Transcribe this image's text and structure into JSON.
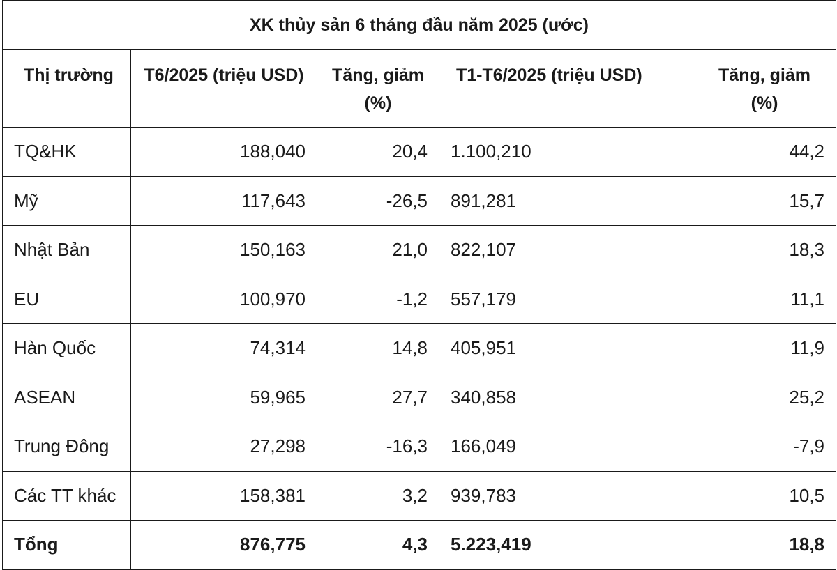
{
  "title": "XK thủy sản 6 tháng đầu năm 2025 (ước)",
  "headers": {
    "market": "Thị trường",
    "june_value": "T6/2025 (triệu USD)",
    "june_change": "Tăng, giảm (%)",
    "ytd_value": "T1-T6/2025 (triệu USD)",
    "ytd_change": "Tăng, giảm (%)"
  },
  "rows": [
    {
      "market": "TQ&HK",
      "june_value": "188,040",
      "june_change": "20,4",
      "ytd_value": "1.100,210",
      "ytd_change": "44,2"
    },
    {
      "market": "Mỹ",
      "june_value": "117,643",
      "june_change": "-26,5",
      "ytd_value": "891,281",
      "ytd_change": "15,7"
    },
    {
      "market": "Nhật Bản",
      "june_value": "150,163",
      "june_change": "21,0",
      "ytd_value": "822,107",
      "ytd_change": "18,3"
    },
    {
      "market": "EU",
      "june_value": "100,970",
      "june_change": "-1,2",
      "ytd_value": "557,179",
      "ytd_change": "11,1"
    },
    {
      "market": "Hàn Quốc",
      "june_value": "74,314",
      "june_change": "14,8",
      "ytd_value": "405,951",
      "ytd_change": "11,9"
    },
    {
      "market": "ASEAN",
      "june_value": "59,965",
      "june_change": "27,7",
      "ytd_value": "340,858",
      "ytd_change": "25,2"
    },
    {
      "market": "Trung Đông",
      "june_value": "27,298",
      "june_change": "-16,3",
      "ytd_value": "166,049",
      "ytd_change": "-7,9"
    },
    {
      "market": "Các TT khác",
      "june_value": "158,381",
      "june_change": "3,2",
      "ytd_value": "939,783",
      "ytd_change": "10,5"
    }
  ],
  "total": {
    "market": "Tổng",
    "june_value": "876,775",
    "june_change": "4,3",
    "ytd_value": "5.223,419",
    "ytd_change": "18,8"
  }
}
